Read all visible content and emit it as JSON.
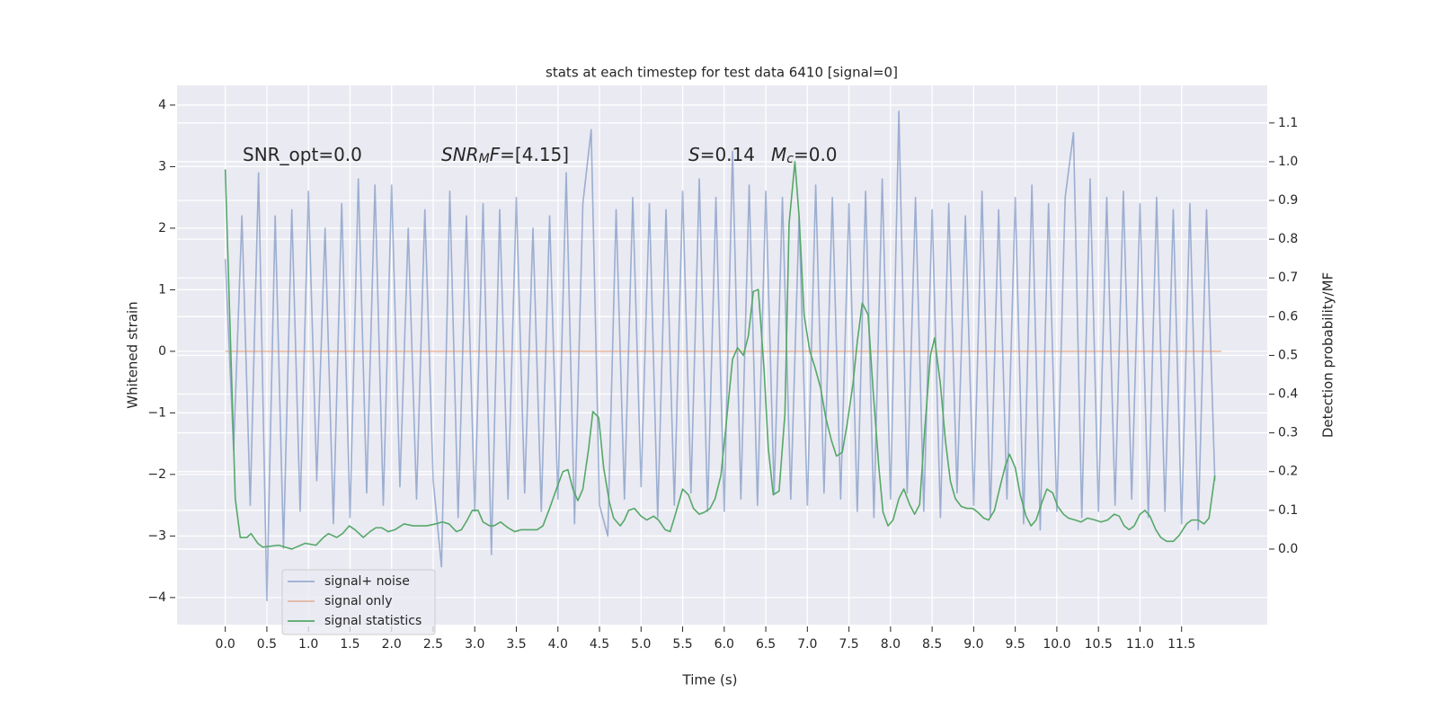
{
  "chart_data": {
    "type": "line",
    "title": "stats at each timestep for test data 6410 [signal=0]",
    "xlabel": "Time (s)",
    "ylabel": "Whitened strain",
    "y2label": "Detection probability/MF",
    "xlim": [
      -0.58,
      12.53
    ],
    "ylim": [
      -4.44,
      4.32
    ],
    "y2lim": [
      -0.195,
      1.197
    ],
    "xticks": [
      {
        "value": 0,
        "label": "0.0"
      },
      0.5,
      {
        "value": 1,
        "label": "1.0"
      },
      1.5,
      {
        "value": 2,
        "label": "2.0"
      },
      2.5,
      {
        "value": 3,
        "label": "3.0"
      },
      3.5,
      {
        "value": 4,
        "label": "4.0"
      },
      4.5,
      {
        "value": 5,
        "label": "5.0"
      },
      5.5,
      {
        "value": 6,
        "label": "6.0"
      },
      6.5,
      {
        "value": 7,
        "label": "7.0"
      },
      7.5,
      {
        "value": 8,
        "label": "8.0"
      },
      8.5,
      {
        "value": 9,
        "label": "9.0"
      },
      9.5,
      {
        "value": 10,
        "label": "10.0"
      },
      10.5,
      {
        "value": 11,
        "label": "11.0"
      },
      11.5
    ],
    "yticks": [
      {
        "value": -4,
        "label": "−4"
      },
      {
        "value": -3,
        "label": "−3"
      },
      {
        "value": -2,
        "label": "−2"
      },
      {
        "value": -1,
        "label": "−1"
      },
      0,
      1,
      2,
      3,
      4
    ],
    "y2ticks": [
      {
        "value": 0,
        "label": "0.0"
      },
      0.1,
      0.2,
      0.3,
      0.4,
      0.5,
      0.6,
      0.7,
      0.8,
      0.9,
      {
        "value": 1,
        "label": "1.0"
      },
      1.1
    ],
    "grid": true,
    "legend": "lower left",
    "annotations": [
      [
        {
          "text": "SNR_opt=0.0",
          "style": "normal"
        }
      ],
      [
        {
          "text": "SNR",
          "style": "italic"
        },
        {
          "text": "M",
          "style": "sub"
        },
        {
          "text": "F",
          "style": "italic"
        },
        {
          "text": "=[4.15]",
          "style": "normal"
        }
      ],
      [
        {
          "text": "S",
          "style": "italic"
        },
        {
          "text": "=0.14",
          "style": "normal"
        }
      ],
      [
        {
          "text": "M",
          "style": "italic"
        },
        {
          "text": "c",
          "style": "sub"
        },
        {
          "text": "=0.0",
          "style": "normal"
        }
      ]
    ],
    "series": [
      {
        "name": "signal+ noise",
        "color": "#4c72b0",
        "opacity": 0.5,
        "x": [
          0,
          0.1,
          0.2,
          0.3,
          0.4,
          0.5,
          0.6,
          0.7,
          0.8,
          0.9,
          1,
          1.1,
          1.2,
          1.3,
          1.4,
          1.5,
          1.6,
          1.7,
          1.8,
          1.9,
          2,
          2.1,
          2.2,
          2.3,
          2.4,
          2.5,
          2.6,
          2.7,
          2.8,
          2.9,
          3,
          3.1,
          3.2,
          3.3,
          3.4,
          3.5,
          3.6,
          3.7,
          3.8,
          3.9,
          4,
          4.1,
          4.2,
          4.3,
          4.4,
          4.5,
          4.6,
          4.7,
          4.8,
          4.9,
          5,
          5.1,
          5.2,
          5.3,
          5.4,
          5.5,
          5.6,
          5.7,
          5.8,
          5.9,
          6,
          6.1,
          6.2,
          6.3,
          6.4,
          6.5,
          6.6,
          6.7,
          6.8,
          6.9,
          7,
          7.1,
          7.2,
          7.3,
          7.4,
          7.5,
          7.6,
          7.7,
          7.8,
          7.9,
          8,
          8.1,
          8.2,
          8.3,
          8.4,
          8.5,
          8.6,
          8.7,
          8.8,
          8.9,
          9,
          9.1,
          9.2,
          9.3,
          9.4,
          9.5,
          9.6,
          9.7,
          9.8,
          9.9,
          10,
          10.1,
          10.2,
          10.3,
          10.4,
          10.5,
          10.6,
          10.7,
          10.8,
          10.9,
          11,
          11.1,
          11.2,
          11.3,
          11.4,
          11.5,
          11.6,
          11.7,
          11.8,
          11.9
        ],
        "values": [
          1.5,
          -1.6,
          2.2,
          -2.5,
          2.9,
          -4.05,
          2.2,
          -3.2,
          2.3,
          -2.6,
          2.6,
          -2.1,
          2.0,
          -2.8,
          2.4,
          -2.7,
          2.8,
          -2.3,
          2.7,
          -2.5,
          2.7,
          -2.2,
          2.0,
          -2.4,
          2.3,
          -2.1,
          -3.5,
          2.6,
          -2.7,
          2.2,
          -2.6,
          2.4,
          -3.3,
          2.3,
          -2.4,
          2.5,
          -2.3,
          2.0,
          -2.6,
          2.2,
          -2.4,
          2.9,
          -2.8,
          2.4,
          3.6,
          -2.5,
          -3.0,
          2.3,
          -2.4,
          2.5,
          -2.2,
          2.4,
          -2.7,
          2.3,
          -2.5,
          2.6,
          -2.3,
          2.8,
          -2.6,
          2.5,
          -2.6,
          3.25,
          -2.4,
          2.7,
          -2.5,
          2.6,
          -2.3,
          2.5,
          -2.4,
          2.2,
          -2.5,
          2.7,
          -2.3,
          2.5,
          -2.4,
          2.4,
          -2.6,
          2.6,
          -2.7,
          2.8,
          -2.4,
          3.9,
          -2.3,
          2.5,
          -2.6,
          2.3,
          -2.7,
          2.4,
          -2.3,
          2.2,
          -2.5,
          2.6,
          -2.7,
          2.3,
          -2.4,
          2.5,
          -2.8,
          2.7,
          -2.9,
          2.4,
          -2.6,
          2.5,
          3.55,
          -2.7,
          2.8,
          -2.6,
          2.5,
          -2.5,
          2.6,
          -2.4,
          2.4,
          -2.7,
          2.5,
          -2.6,
          2.3,
          -2.8,
          2.4,
          -2.9,
          2.3,
          -2.1
        ]
      },
      {
        "name": "signal only",
        "color": "#dd8452",
        "opacity": 0.5,
        "x": [
          0,
          11.98
        ],
        "values": [
          0,
          0
        ]
      },
      {
        "name": "signal statistics",
        "color": "#55a868",
        "opacity": 1,
        "axis": "y2",
        "x": [
          0,
          0.12,
          0.18,
          0.26,
          0.31,
          0.39,
          0.45,
          0.64,
          0.8,
          0.96,
          1.09,
          1.18,
          1.24,
          1.34,
          1.41,
          1.49,
          1.56,
          1.66,
          1.74,
          1.81,
          1.88,
          1.96,
          2.04,
          2.15,
          2.26,
          2.42,
          2.53,
          2.61,
          2.69,
          2.78,
          2.84,
          2.91,
          2.97,
          3.04,
          3.1,
          3.18,
          3.23,
          3.31,
          3.4,
          3.48,
          3.56,
          3.66,
          3.75,
          3.82,
          3.9,
          3.99,
          4.06,
          4.12,
          4.18,
          4.24,
          4.3,
          4.37,
          4.42,
          4.49,
          4.55,
          4.62,
          4.67,
          4.75,
          4.8,
          4.85,
          4.92,
          5,
          5.07,
          5.15,
          5.21,
          5.29,
          5.35,
          5.42,
          5.5,
          5.57,
          5.63,
          5.7,
          5.76,
          5.83,
          5.89,
          5.96,
          6.02,
          6.1,
          6.16,
          6.23,
          6.29,
          6.35,
          6.41,
          6.48,
          6.53,
          6.59,
          6.66,
          6.73,
          6.78,
          6.85,
          6.9,
          6.96,
          7.03,
          7.09,
          7.16,
          7.22,
          7.29,
          7.35,
          7.42,
          7.48,
          7.55,
          7.6,
          7.66,
          7.73,
          7.79,
          7.86,
          7.91,
          7.97,
          8.03,
          8.1,
          8.16,
          8.23,
          8.29,
          8.35,
          8.41,
          8.48,
          8.53,
          8.6,
          8.66,
          8.72,
          8.78,
          8.85,
          8.92,
          8.99,
          9.05,
          9.12,
          9.18,
          9.25,
          9.31,
          9.38,
          9.43,
          9.5,
          9.56,
          9.63,
          9.69,
          9.75,
          9.82,
          9.88,
          9.95,
          10.01,
          10.08,
          10.14,
          10.22,
          10.29,
          10.37,
          10.46,
          10.53,
          10.61,
          10.69,
          10.75,
          10.81,
          10.87,
          10.93,
          11,
          11.06,
          11.12,
          11.19,
          11.25,
          11.32,
          11.4,
          11.47,
          11.56,
          11.62,
          11.7,
          11.77,
          11.83,
          11.9
        ],
        "values": [
          0.98,
          0.13,
          0.03,
          0.03,
          0.04,
          0.015,
          0.005,
          0.01,
          0.0,
          0.015,
          0.01,
          0.03,
          0.04,
          0.03,
          0.04,
          0.06,
          0.05,
          0.03,
          0.045,
          0.055,
          0.055,
          0.045,
          0.05,
          0.065,
          0.06,
          0.06,
          0.065,
          0.07,
          0.065,
          0.045,
          0.05,
          0.075,
          0.1,
          0.1,
          0.07,
          0.06,
          0.06,
          0.07,
          0.055,
          0.045,
          0.05,
          0.05,
          0.05,
          0.06,
          0.105,
          0.16,
          0.2,
          0.205,
          0.155,
          0.125,
          0.155,
          0.26,
          0.355,
          0.34,
          0.21,
          0.12,
          0.08,
          0.06,
          0.075,
          0.1,
          0.105,
          0.085,
          0.075,
          0.085,
          0.075,
          0.05,
          0.045,
          0.095,
          0.155,
          0.14,
          0.105,
          0.09,
          0.095,
          0.105,
          0.13,
          0.19,
          0.315,
          0.49,
          0.52,
          0.5,
          0.55,
          0.665,
          0.67,
          0.46,
          0.26,
          0.14,
          0.15,
          0.35,
          0.84,
          1.0,
          0.86,
          0.605,
          0.51,
          0.47,
          0.415,
          0.34,
          0.28,
          0.24,
          0.25,
          0.325,
          0.43,
          0.535,
          0.635,
          0.605,
          0.41,
          0.21,
          0.095,
          0.06,
          0.075,
          0.13,
          0.155,
          0.115,
          0.09,
          0.115,
          0.305,
          0.5,
          0.545,
          0.425,
          0.28,
          0.175,
          0.13,
          0.11,
          0.105,
          0.105,
          0.095,
          0.08,
          0.075,
          0.1,
          0.155,
          0.215,
          0.245,
          0.21,
          0.14,
          0.085,
          0.06,
          0.075,
          0.12,
          0.155,
          0.145,
          0.11,
          0.09,
          0.08,
          0.075,
          0.07,
          0.08,
          0.075,
          0.07,
          0.075,
          0.09,
          0.085,
          0.06,
          0.05,
          0.06,
          0.09,
          0.1,
          0.085,
          0.05,
          0.03,
          0.02,
          0.02,
          0.035,
          0.065,
          0.075,
          0.075,
          0.065,
          0.08,
          0.19
        ]
      }
    ]
  }
}
